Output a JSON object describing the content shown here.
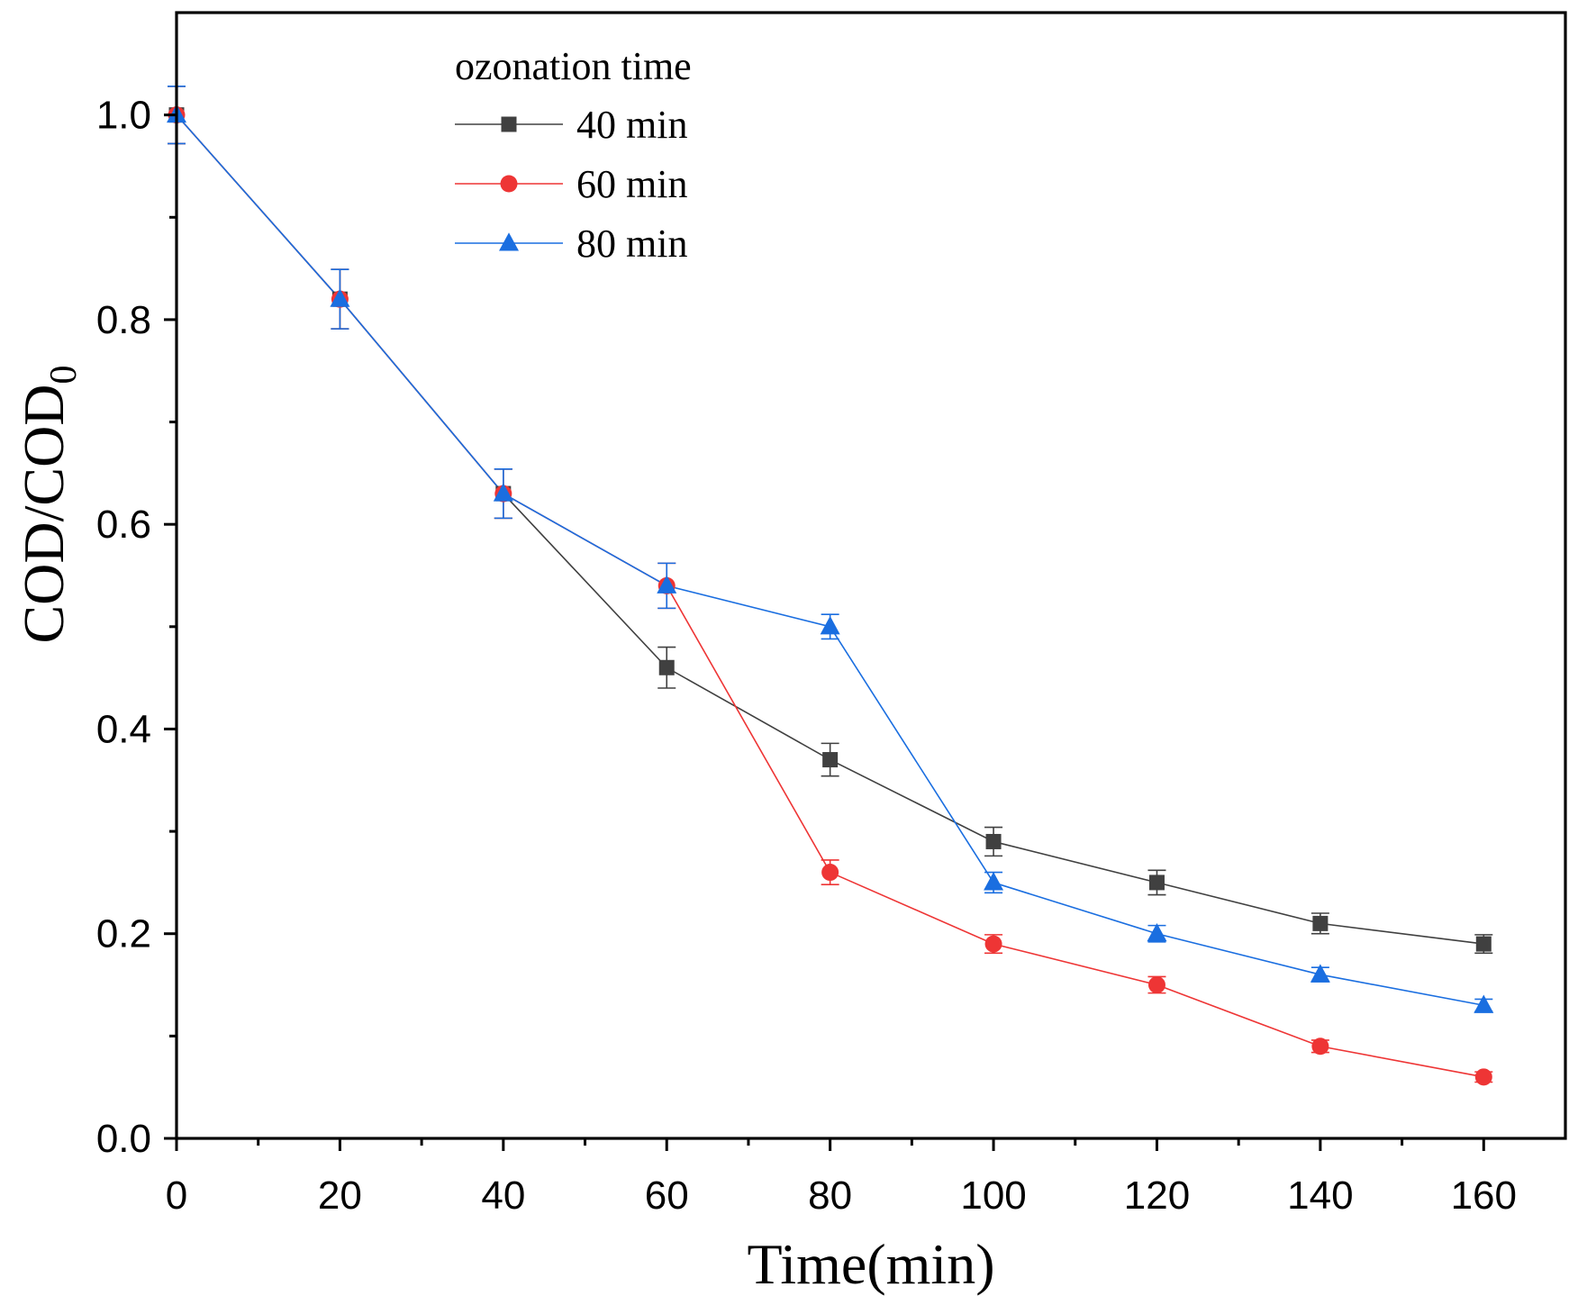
{
  "chart_data": {
    "type": "line",
    "title": "",
    "xlabel": "Time(min)",
    "ylabel": {
      "main": "COD/COD",
      "subscript": "0"
    },
    "xlim": [
      0,
      170
    ],
    "ylim": [
      0,
      1.1
    ],
    "x_ticks": [
      0,
      20,
      40,
      60,
      80,
      100,
      120,
      140,
      160
    ],
    "x_minor_ticks": [
      10,
      30,
      50,
      70,
      90,
      110,
      130,
      150
    ],
    "y_ticks": [
      0.0,
      0.2,
      0.4,
      0.6,
      0.8,
      1.0
    ],
    "y_tick_labels": [
      "0.0",
      "0.2",
      "0.4",
      "0.6",
      "0.8",
      "1.0"
    ],
    "y_minor_ticks": [
      0.1,
      0.3,
      0.5,
      0.7,
      0.9
    ],
    "grid": false,
    "legend": {
      "title": "ozonation time",
      "position": "top-left"
    },
    "series": [
      {
        "name": "40 min",
        "color": "#404040",
        "marker": "square",
        "x": [
          0,
          20,
          40,
          60,
          80,
          100,
          120,
          140,
          160
        ],
        "y": [
          1.0,
          0.82,
          0.63,
          0.46,
          0.37,
          0.29,
          0.25,
          0.21,
          0.19
        ],
        "err": [
          0.028,
          0.029,
          0.024,
          0.02,
          0.016,
          0.014,
          0.012,
          0.01,
          0.009
        ]
      },
      {
        "name": "60 min",
        "color": "#ee3535",
        "marker": "circle",
        "x": [
          0,
          20,
          40,
          60,
          80,
          100,
          120,
          140,
          160
        ],
        "y": [
          1.0,
          0.82,
          0.63,
          0.54,
          0.26,
          0.19,
          0.15,
          0.09,
          0.06
        ],
        "err": [
          0.028,
          0.029,
          0.024,
          0.022,
          0.012,
          0.009,
          0.008,
          0.006,
          0.005
        ]
      },
      {
        "name": "80 min",
        "color": "#1a6ee0",
        "marker": "triangle",
        "x": [
          0,
          20,
          40,
          60,
          80,
          100,
          120,
          140,
          160
        ],
        "y": [
          1.0,
          0.82,
          0.63,
          0.54,
          0.5,
          0.25,
          0.2,
          0.16,
          0.13
        ],
        "err": [
          0.028,
          0.029,
          0.024,
          0.022,
          0.012,
          0.01,
          0.008,
          0.007,
          0.006
        ]
      }
    ]
  }
}
